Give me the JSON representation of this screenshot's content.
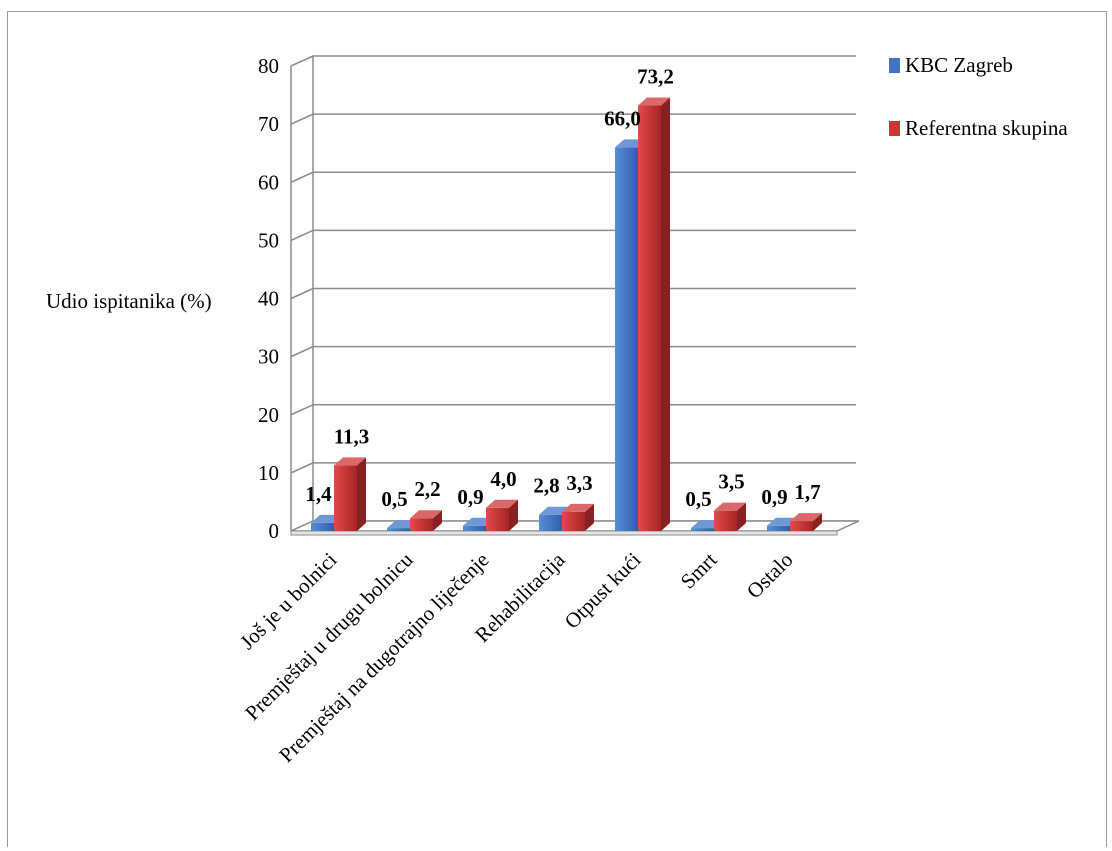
{
  "chart_data": {
    "type": "bar",
    "title": "",
    "xlabel": "",
    "ylabel": "Udio ispitanika (%)",
    "ylim": [
      0,
      80
    ],
    "yticks": [
      0,
      10,
      20,
      30,
      40,
      50,
      60,
      70,
      80
    ],
    "grid": true,
    "legend_position": "top-right",
    "categories": [
      "Još je u bolnici",
      "Premještaj u drugu bolnicu",
      "Premještaj na dugotrajno liječenje",
      "Rehabilitacija",
      "Otpust kući",
      "Smrt",
      "Ostalo"
    ],
    "series": [
      {
        "name": "KBC Zagreb",
        "color": "#3f74c4",
        "values": [
          1.4,
          0.5,
          0.9,
          2.8,
          66.0,
          0.5,
          0.9
        ],
        "labels": [
          "1,4",
          "0,5",
          "0,9",
          "2,8",
          "66,0",
          "0,5",
          "0,9"
        ]
      },
      {
        "name": "Referentna skupina",
        "color": "#cf3535",
        "values": [
          11.3,
          2.2,
          4.0,
          3.3,
          73.2,
          3.5,
          1.7
        ],
        "labels": [
          "11,3",
          "2,2",
          "4,0",
          "3,3",
          "73,2",
          "3,5",
          "1,7"
        ]
      }
    ]
  }
}
